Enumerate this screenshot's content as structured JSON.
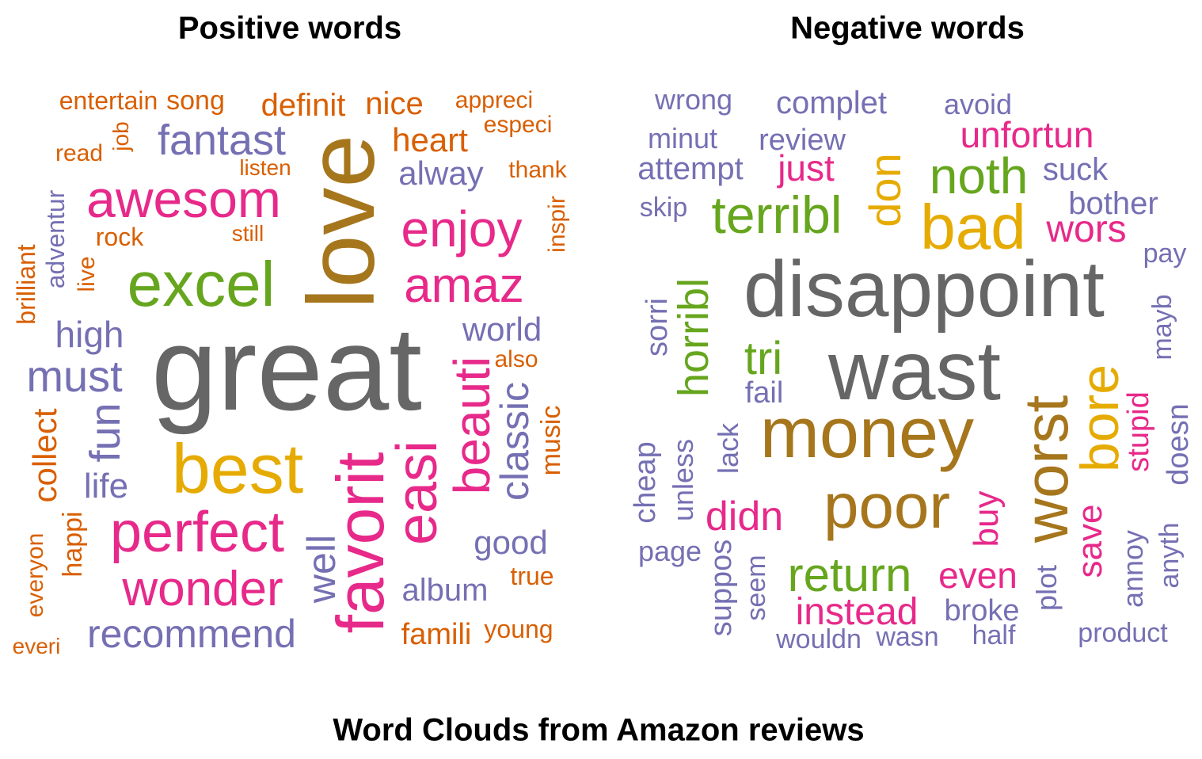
{
  "titles": {
    "positive": "Positive words",
    "negative": "Negative words",
    "main": "Word Clouds from Amazon reviews"
  },
  "palette": {
    "orange": "#D95F02",
    "purple": "#7570B3",
    "magenta": "#E7298A",
    "green": "#66A61E",
    "yellow": "#E6AB02",
    "brown": "#A6761D",
    "gray": "#666666"
  },
  "positive_words": [
    {
      "text": "entertain",
      "color": "orange"
    },
    {
      "text": "song",
      "color": "orange"
    },
    {
      "text": "definit",
      "color": "orange"
    },
    {
      "text": "nice",
      "color": "orange"
    },
    {
      "text": "appreci",
      "color": "orange"
    },
    {
      "text": "especi",
      "color": "orange"
    },
    {
      "text": "job",
      "color": "orange"
    },
    {
      "text": "read",
      "color": "orange"
    },
    {
      "text": "fantast",
      "color": "purple"
    },
    {
      "text": "heart",
      "color": "orange"
    },
    {
      "text": "listen",
      "color": "orange"
    },
    {
      "text": "alway",
      "color": "purple"
    },
    {
      "text": "thank",
      "color": "orange"
    },
    {
      "text": "love",
      "color": "brown"
    },
    {
      "text": "awesom",
      "color": "magenta"
    },
    {
      "text": "adventur",
      "color": "purple"
    },
    {
      "text": "inspir",
      "color": "orange"
    },
    {
      "text": "enjoy",
      "color": "magenta"
    },
    {
      "text": "rock",
      "color": "orange"
    },
    {
      "text": "still",
      "color": "orange"
    },
    {
      "text": "brilliant",
      "color": "orange"
    },
    {
      "text": "live",
      "color": "orange"
    },
    {
      "text": "excel",
      "color": "green"
    },
    {
      "text": "amaz",
      "color": "magenta"
    },
    {
      "text": "high",
      "color": "purple"
    },
    {
      "text": "world",
      "color": "purple"
    },
    {
      "text": "great",
      "color": "gray"
    },
    {
      "text": "also",
      "color": "orange"
    },
    {
      "text": "must",
      "color": "purple"
    },
    {
      "text": "beauti",
      "color": "magenta"
    },
    {
      "text": "classic",
      "color": "purple"
    },
    {
      "text": "music",
      "color": "orange"
    },
    {
      "text": "fun",
      "color": "purple"
    },
    {
      "text": "collect",
      "color": "orange"
    },
    {
      "text": "best",
      "color": "yellow"
    },
    {
      "text": "easi",
      "color": "magenta"
    },
    {
      "text": "life",
      "color": "purple"
    },
    {
      "text": "favorit",
      "color": "magenta"
    },
    {
      "text": "perfect",
      "color": "magenta"
    },
    {
      "text": "happi",
      "color": "orange"
    },
    {
      "text": "everyon",
      "color": "orange"
    },
    {
      "text": "good",
      "color": "purple"
    },
    {
      "text": "well",
      "color": "purple"
    },
    {
      "text": "true",
      "color": "orange"
    },
    {
      "text": "wonder",
      "color": "magenta"
    },
    {
      "text": "album",
      "color": "purple"
    },
    {
      "text": "recommend",
      "color": "purple"
    },
    {
      "text": "famili",
      "color": "orange"
    },
    {
      "text": "young",
      "color": "orange"
    },
    {
      "text": "everi",
      "color": "orange"
    }
  ],
  "negative_words": [
    {
      "text": "wrong",
      "color": "purple"
    },
    {
      "text": "complet",
      "color": "purple"
    },
    {
      "text": "avoid",
      "color": "purple"
    },
    {
      "text": "minut",
      "color": "purple"
    },
    {
      "text": "review",
      "color": "purple"
    },
    {
      "text": "unfortun",
      "color": "magenta"
    },
    {
      "text": "attempt",
      "color": "purple"
    },
    {
      "text": "just",
      "color": "magenta"
    },
    {
      "text": "don",
      "color": "yellow"
    },
    {
      "text": "noth",
      "color": "green"
    },
    {
      "text": "suck",
      "color": "purple"
    },
    {
      "text": "skip",
      "color": "purple"
    },
    {
      "text": "terribl",
      "color": "green"
    },
    {
      "text": "bad",
      "color": "yellow"
    },
    {
      "text": "bother",
      "color": "purple"
    },
    {
      "text": "wors",
      "color": "magenta"
    },
    {
      "text": "pay",
      "color": "purple"
    },
    {
      "text": "horribl",
      "color": "green"
    },
    {
      "text": "disappoint",
      "color": "gray"
    },
    {
      "text": "sorri",
      "color": "purple"
    },
    {
      "text": "mayb",
      "color": "purple"
    },
    {
      "text": "tri",
      "color": "green"
    },
    {
      "text": "wast",
      "color": "gray"
    },
    {
      "text": "fail",
      "color": "purple"
    },
    {
      "text": "bore",
      "color": "yellow"
    },
    {
      "text": "stupid",
      "color": "magenta"
    },
    {
      "text": "doesn",
      "color": "purple"
    },
    {
      "text": "worst",
      "color": "brown"
    },
    {
      "text": "lack",
      "color": "purple"
    },
    {
      "text": "money",
      "color": "brown"
    },
    {
      "text": "cheap",
      "color": "purple"
    },
    {
      "text": "unless",
      "color": "purple"
    },
    {
      "text": "poor",
      "color": "brown"
    },
    {
      "text": "buy",
      "color": "magenta"
    },
    {
      "text": "didn",
      "color": "magenta"
    },
    {
      "text": "save",
      "color": "magenta"
    },
    {
      "text": "page",
      "color": "purple"
    },
    {
      "text": "annoy",
      "color": "purple"
    },
    {
      "text": "anyth",
      "color": "purple"
    },
    {
      "text": "plot",
      "color": "purple"
    },
    {
      "text": "suppos",
      "color": "purple"
    },
    {
      "text": "seem",
      "color": "purple"
    },
    {
      "text": "return",
      "color": "green"
    },
    {
      "text": "even",
      "color": "magenta"
    },
    {
      "text": "instead",
      "color": "magenta"
    },
    {
      "text": "broke",
      "color": "purple"
    },
    {
      "text": "product",
      "color": "purple"
    },
    {
      "text": "wouldn",
      "color": "purple"
    },
    {
      "text": "wasn",
      "color": "purple"
    },
    {
      "text": "half",
      "color": "purple"
    }
  ]
}
